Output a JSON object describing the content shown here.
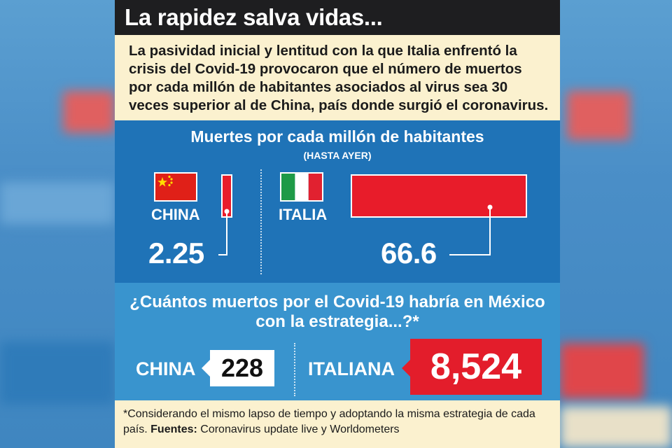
{
  "headline": "La rapidez salva vidas...",
  "intro": "La pasividad inicial y lentitud con la que Italia enfrentó la crisis del Covid-19 provocaron que el número de muertos por cada millón de habitantes asociados al virus sea 30 veces superior al de China, país donde surgió el coronavirus.",
  "chart_data": [
    {
      "type": "bar",
      "title": "Muertes por cada millón de habitantes",
      "subtitle": "(HASTA AYER)",
      "categories": [
        "CHINA",
        "ITALIA"
      ],
      "values": [
        2.25,
        66.6
      ],
      "value_labels": [
        "2.25",
        "66.6"
      ],
      "xlabel": "",
      "ylabel": "",
      "orientation": "horizontal"
    },
    {
      "type": "table",
      "title": "¿Cuántos muertos por el Covid-19 habría en México con la estrategia...?*",
      "categories": [
        "CHINA",
        "ITALIANA"
      ],
      "values": [
        228,
        8524
      ],
      "value_labels": [
        "228",
        "8,524"
      ]
    }
  ],
  "colors": {
    "panel_dark": "#1f73b7",
    "panel_light": "#3994ce",
    "bar_red": "#e81c2a",
    "cream": "#fbf1cf",
    "title_bg": "#1e1e20"
  },
  "icons": [
    "china-flag-icon",
    "italy-flag-icon"
  ],
  "footer": {
    "note": "*Considerando el mismo lapso de tiempo y adoptando la misma estrategia de cada país.",
    "sources_label": "Fuentes:",
    "sources_text": "Coronavirus update live y Worldometers"
  }
}
